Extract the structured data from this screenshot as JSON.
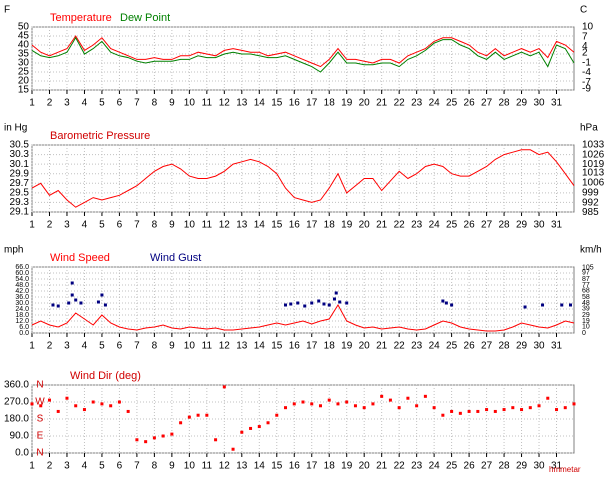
{
  "chart_data": [
    {
      "type": "line",
      "y_label": "F",
      "y2_label": "C",
      "x": [
        1,
        1.5,
        2,
        2.5,
        3,
        3.5,
        4,
        4.5,
        5,
        5.5,
        6,
        6.5,
        7,
        7.5,
        8,
        8.5,
        9,
        9.5,
        10,
        10.5,
        11,
        11.5,
        12,
        12.5,
        13,
        13.5,
        14,
        14.5,
        15,
        15.5,
        16,
        16.5,
        17,
        17.5,
        18,
        18.5,
        19,
        19.5,
        20,
        20.5,
        21,
        21.5,
        22,
        22.5,
        23,
        23.5,
        24,
        24.5,
        25,
        25.5,
        26,
        26.5,
        27,
        27.5,
        28,
        28.5,
        29,
        29.5,
        30,
        30.5,
        31,
        31.5,
        32
      ],
      "xlim": [
        1,
        32
      ],
      "xticks": [
        1,
        2,
        3,
        4,
        5,
        6,
        7,
        8,
        9,
        10,
        11,
        12,
        13,
        14,
        15,
        16,
        17,
        18,
        19,
        20,
        21,
        22,
        23,
        24,
        25,
        26,
        27,
        28,
        29,
        30,
        31
      ],
      "ylim": [
        15,
        50
      ],
      "yticks": [
        15,
        20,
        25,
        30,
        35,
        40,
        45,
        50
      ],
      "y2lim": [
        -9.4,
        10
      ],
      "y2ticks": [
        10,
        7,
        4,
        2,
        -1,
        -4,
        -7,
        -9
      ],
      "grid": true,
      "series": [
        {
          "name": "Temperature",
          "color": "#ff0000",
          "values": [
            40,
            36,
            34,
            36,
            38,
            45,
            37,
            40,
            44,
            38,
            36,
            34,
            32,
            32,
            33,
            32,
            32,
            34,
            34,
            36,
            35,
            34,
            37,
            38,
            37,
            36,
            36,
            34,
            35,
            36,
            34,
            32,
            30,
            28,
            32,
            38,
            32,
            32,
            31,
            30,
            32,
            32,
            30,
            34,
            36,
            38,
            42,
            44,
            44,
            42,
            40,
            36,
            34,
            38,
            34,
            36,
            38,
            36,
            38,
            33,
            42,
            40,
            36
          ]
        },
        {
          "name": "Dew Point",
          "color": "#008000",
          "values": [
            37,
            34,
            33,
            34,
            36,
            44,
            35,
            38,
            42,
            36,
            34,
            33,
            31,
            30,
            31,
            31,
            31,
            32,
            32,
            34,
            33,
            33,
            35,
            36,
            35,
            35,
            34,
            33,
            33,
            34,
            32,
            30,
            28,
            25,
            30,
            36,
            30,
            30,
            29,
            29,
            30,
            30,
            28,
            32,
            34,
            37,
            41,
            43,
            43,
            40,
            38,
            34,
            32,
            36,
            32,
            34,
            36,
            34,
            36,
            28,
            40,
            38,
            30
          ]
        }
      ]
    },
    {
      "type": "line",
      "title": "Barometric Pressure",
      "y_label": "in Hg",
      "y2_label": "hPa",
      "x": [
        1,
        1.5,
        2,
        2.5,
        3,
        3.5,
        4,
        4.5,
        5,
        5.5,
        6,
        6.5,
        7,
        7.5,
        8,
        8.5,
        9,
        9.5,
        10,
        10.5,
        11,
        11.5,
        12,
        12.5,
        13,
        13.5,
        14,
        14.5,
        15,
        15.5,
        16,
        16.5,
        17,
        17.5,
        18,
        18.5,
        19,
        19.5,
        20,
        20.5,
        21,
        21.5,
        22,
        22.5,
        23,
        23.5,
        24,
        24.5,
        25,
        25.5,
        26,
        26.5,
        27,
        27.5,
        28,
        28.5,
        29,
        29.5,
        30,
        30.5,
        31,
        31.5,
        32
      ],
      "xlim": [
        1,
        32
      ],
      "xticks": [
        1,
        2,
        3,
        4,
        5,
        6,
        7,
        8,
        9,
        10,
        11,
        12,
        13,
        14,
        15,
        16,
        17,
        18,
        19,
        20,
        21,
        22,
        23,
        24,
        25,
        26,
        27,
        28,
        29,
        30,
        31
      ],
      "ylim": [
        29.1,
        30.5
      ],
      "yticks": [
        29.1,
        29.3,
        29.5,
        29.7,
        29.9,
        30.1,
        30.3,
        30.5
      ],
      "y2lim": [
        985.4,
        1032.9
      ],
      "y2ticks": [
        1033,
        1026,
        1019,
        1013,
        1006,
        999,
        992,
        985
      ],
      "grid": true,
      "series": [
        {
          "color": "#ff0000",
          "values": [
            29.6,
            29.7,
            29.45,
            29.55,
            29.35,
            29.2,
            29.3,
            29.4,
            29.35,
            29.4,
            29.45,
            29.55,
            29.65,
            29.8,
            29.95,
            30.05,
            30.1,
            30.0,
            29.85,
            29.8,
            29.8,
            29.85,
            29.95,
            30.1,
            30.15,
            30.2,
            30.15,
            30.05,
            29.9,
            29.6,
            29.4,
            29.35,
            29.3,
            29.35,
            29.6,
            29.9,
            29.5,
            29.65,
            29.8,
            29.8,
            29.55,
            29.75,
            29.95,
            29.8,
            29.9,
            30.05,
            30.1,
            30.05,
            29.9,
            29.85,
            29.85,
            29.95,
            30.05,
            30.2,
            30.3,
            30.35,
            30.4,
            30.4,
            30.3,
            30.35,
            30.15,
            29.9,
            29.65
          ]
        }
      ]
    },
    {
      "type": "line",
      "y_label": "mph",
      "y2_label": "km/h",
      "x": [
        1,
        1.5,
        2,
        2.5,
        3,
        3.5,
        4,
        4.5,
        5,
        5.5,
        6,
        6.5,
        7,
        7.5,
        8,
        8.5,
        9,
        9.5,
        10,
        10.5,
        11,
        11.5,
        12,
        12.5,
        13,
        13.5,
        14,
        14.5,
        15,
        15.5,
        16,
        16.5,
        17,
        17.5,
        18,
        18.5,
        19,
        19.5,
        20,
        20.5,
        21,
        21.5,
        22,
        22.5,
        23,
        23.5,
        24,
        24.5,
        25,
        25.5,
        26,
        26.5,
        27,
        27.5,
        28,
        28.5,
        29,
        29.5,
        30,
        30.5,
        31,
        31.5,
        32
      ],
      "xlim": [
        1,
        32
      ],
      "xticks": [
        1,
        2,
        3,
        4,
        5,
        6,
        7,
        8,
        9,
        10,
        11,
        12,
        13,
        14,
        15,
        16,
        17,
        18,
        19,
        20,
        21,
        22,
        23,
        24,
        25,
        26,
        27,
        28,
        29,
        30,
        31
      ],
      "ylim": [
        0,
        66
      ],
      "yticks": [
        {
          "value": 0,
          "label": "0.0"
        },
        {
          "value": 6,
          "label": "6.0"
        },
        {
          "value": 12,
          "label": "12.0"
        },
        {
          "value": 18,
          "label": "18.0"
        },
        {
          "value": 24,
          "label": "24.0"
        },
        {
          "value": 30,
          "label": "30.0"
        },
        {
          "value": 36,
          "label": "36.0"
        },
        {
          "value": 42,
          "label": "42.0"
        },
        {
          "value": 48,
          "label": "48.0"
        },
        {
          "value": 54,
          "label": "54.0"
        },
        {
          "value": 60,
          "label": "60.0"
        },
        {
          "value": 66,
          "label": "66.0"
        }
      ],
      "y2lim": [
        0,
        106.2
      ],
      "y2ticks": [
        105,
        97,
        87,
        77,
        68,
        58,
        48,
        39,
        29,
        19,
        10,
        0
      ],
      "grid": true,
      "series": [
        {
          "name": "Wind Speed",
          "color": "#ff0000",
          "values": [
            8,
            12,
            8,
            6,
            10,
            20,
            14,
            8,
            18,
            10,
            6,
            4,
            3,
            5,
            6,
            8,
            5,
            4,
            6,
            5,
            4,
            5,
            3,
            3,
            4,
            5,
            6,
            8,
            10,
            8,
            10,
            12,
            9,
            12,
            14,
            28,
            12,
            8,
            5,
            6,
            4,
            5,
            6,
            4,
            3,
            4,
            8,
            12,
            10,
            6,
            4,
            3,
            2,
            2,
            3,
            6,
            10,
            8,
            6,
            5,
            8,
            12,
            10
          ]
        },
        {
          "name": "Wind Gust",
          "color": "#000080",
          "type": "scatter",
          "x": [
            2.2,
            2.5,
            3.1,
            3.3,
            3.3,
            3.5,
            3.8,
            4.8,
            5,
            5.2,
            15.5,
            15.8,
            16.2,
            16.6,
            17,
            17.4,
            17.7,
            18,
            18.3,
            18.4,
            18.6,
            19,
            24.5,
            24.7,
            25,
            29.2,
            30.2,
            31.3,
            31.8
          ],
          "values": [
            28,
            27,
            30,
            38,
            50,
            33,
            30,
            31,
            38,
            28,
            28,
            29,
            30,
            27,
            30,
            32,
            29,
            28,
            34,
            40,
            31,
            30,
            32,
            30,
            28,
            26,
            28,
            28,
            28
          ]
        }
      ]
    },
    {
      "type": "scatter",
      "title": "Wind Dir (deg)",
      "x": [
        1,
        1.5,
        2,
        2.5,
        3,
        3.5,
        4,
        4.5,
        5,
        5.5,
        6,
        6.5,
        7,
        7.5,
        8,
        8.5,
        9,
        9.5,
        10,
        10.5,
        11,
        11.5,
        12,
        12.5,
        13,
        13.5,
        14,
        14.5,
        15,
        15.5,
        16,
        16.5,
        17,
        17.5,
        18,
        18.5,
        19,
        19.5,
        20,
        20.5,
        21,
        21.5,
        22,
        22.5,
        23,
        23.5,
        24,
        24.5,
        25,
        25.5,
        26,
        26.5,
        27,
        27.5,
        28,
        28.5,
        29,
        29.5,
        30,
        30.5,
        31,
        31.5,
        32
      ],
      "xlim": [
        1,
        32
      ],
      "xticks": [
        1,
        2,
        3,
        4,
        5,
        6,
        7,
        8,
        9,
        10,
        11,
        12,
        13,
        14,
        15,
        16,
        17,
        18,
        19,
        20,
        21,
        22,
        23,
        24,
        25,
        26,
        27,
        28,
        29,
        30,
        31
      ],
      "ylim": [
        0,
        360
      ],
      "yticks": [
        {
          "value": 0,
          "label": "0.0"
        },
        {
          "value": 90,
          "label": "90.0"
        },
        {
          "value": 180,
          "label": "180.0"
        },
        {
          "value": 270,
          "label": "270.0"
        },
        {
          "value": 360,
          "label": "360.0"
        }
      ],
      "grid": true,
      "annotations": [
        {
          "text": "N",
          "value": 360
        },
        {
          "text": "W",
          "value": 270
        },
        {
          "text": "S",
          "value": 180
        },
        {
          "text": "E",
          "value": 90
        },
        {
          "text": "N",
          "value": 0
        }
      ],
      "series": [
        {
          "color": "#ff0000",
          "values": [
            260,
            250,
            280,
            220,
            290,
            250,
            230,
            270,
            260,
            250,
            270,
            220,
            70,
            60,
            80,
            90,
            100,
            160,
            190,
            200,
            200,
            70,
            350,
            20,
            110,
            130,
            140,
            160,
            200,
            240,
            260,
            270,
            260,
            250,
            280,
            260,
            270,
            250,
            240,
            260,
            300,
            280,
            240,
            290,
            250,
            300,
            240,
            200,
            220,
            210,
            220,
            220,
            230,
            220,
            230,
            240,
            230,
            240,
            250,
            290,
            230,
            240,
            260
          ]
        }
      ],
      "footer": "hmmetar"
    }
  ]
}
